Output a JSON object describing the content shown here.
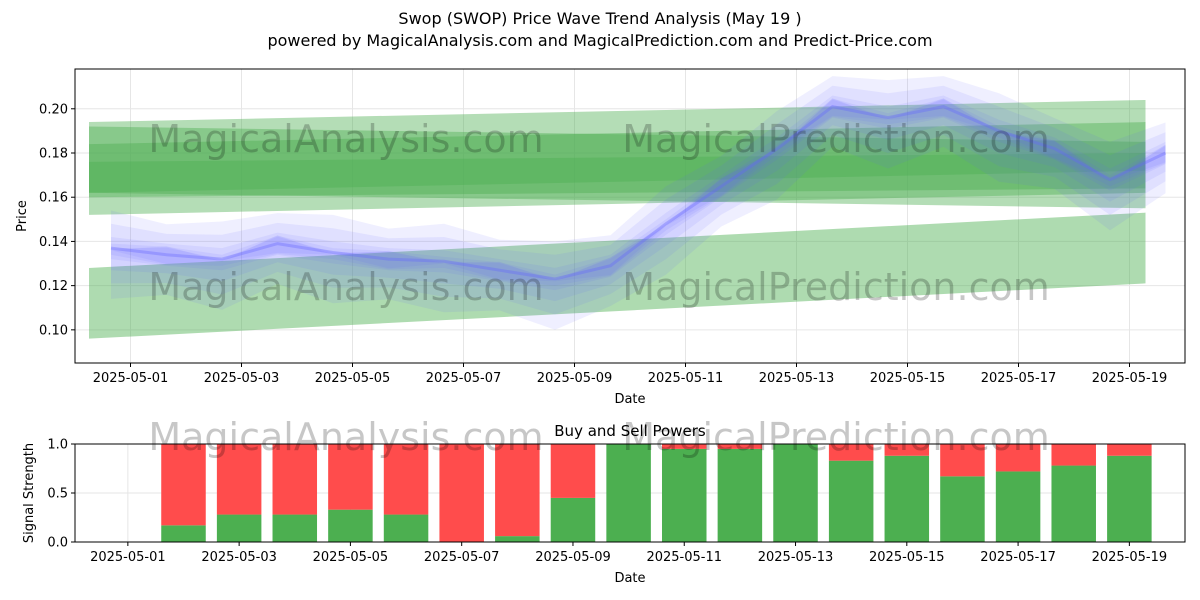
{
  "header": {
    "title": "Swop (SWOP) Price Wave Trend Analysis (May 19 )",
    "subtitle": "powered by MagicalAnalysis.com and MagicalPrediction.com and Predict-Price.com"
  },
  "watermarks": [
    "MagicalAnalysis.com",
    "MagicalPrediction.com"
  ],
  "colors": {
    "price_band": "#6464ff",
    "trend_band": "#4caf50",
    "buy": "#4caf50",
    "sell": "#ff4c4c",
    "grid": "#e6e6e6"
  },
  "chart_data": [
    {
      "type": "area",
      "title": "",
      "xlabel": "Date",
      "ylabel": "Price",
      "xlim": [
        "2025-04-30",
        "2025-05-20"
      ],
      "ylim": [
        0.085,
        0.218
      ],
      "grid": true,
      "x_ticks": [
        "2025-05-01",
        "2025-05-03",
        "2025-05-05",
        "2025-05-07",
        "2025-05-09",
        "2025-05-11",
        "2025-05-13",
        "2025-05-15",
        "2025-05-17",
        "2025-05-19"
      ],
      "y_ticks": [
        0.1,
        0.12,
        0.14,
        0.16,
        0.18,
        0.2
      ],
      "price_x": [
        "2025-04-30",
        "2025-05-01",
        "2025-05-02",
        "2025-05-03",
        "2025-05-04",
        "2025-05-05",
        "2025-05-06",
        "2025-05-07",
        "2025-05-08",
        "2025-05-09",
        "2025-05-10",
        "2025-05-11",
        "2025-05-12",
        "2025-05-13",
        "2025-05-14",
        "2025-05-15",
        "2025-05-16",
        "2025-05-17",
        "2025-05-18",
        "2025-05-19"
      ],
      "price_center": [
        0.137,
        0.134,
        0.132,
        0.139,
        0.135,
        0.132,
        0.131,
        0.127,
        0.123,
        0.129,
        0.148,
        0.165,
        0.182,
        0.201,
        0.196,
        0.201,
        0.19,
        0.182,
        0.168,
        0.18
      ],
      "trend_bands": [
        {
          "x0": "2025-04-30",
          "x1": "2025-05-19",
          "y0": 0.168,
          "y1": 0.178,
          "half_width": 0.016
        },
        {
          "x0": "2025-04-30",
          "x1": "2025-05-19",
          "y0": 0.177,
          "y1": 0.17,
          "half_width": 0.015
        },
        {
          "x0": "2025-04-30",
          "x1": "2025-05-19",
          "y0": 0.178,
          "y1": 0.188,
          "half_width": 0.016
        },
        {
          "x0": "2025-04-30",
          "x1": "2025-05-19",
          "y0": 0.168,
          "y1": 0.172,
          "half_width": 0.008
        },
        {
          "x0": "2025-04-30",
          "x1": "2025-05-19",
          "y0": 0.112,
          "y1": 0.137,
          "half_width": 0.016
        }
      ]
    },
    {
      "type": "bar",
      "title": "Buy and Sell Powers",
      "xlabel": "Date",
      "ylabel": "Signal Strength",
      "xlim": [
        "2025-04-30",
        "2025-05-20"
      ],
      "ylim": [
        0,
        1.0
      ],
      "grid": true,
      "x_ticks": [
        "2025-05-01",
        "2025-05-03",
        "2025-05-05",
        "2025-05-07",
        "2025-05-09",
        "2025-05-11",
        "2025-05-13",
        "2025-05-15",
        "2025-05-17",
        "2025-05-19"
      ],
      "y_ticks": [
        "0.0",
        "0.5",
        "1.0"
      ],
      "categories": [
        "2025-05-02",
        "2025-05-03",
        "2025-05-04",
        "2025-05-05",
        "2025-05-06",
        "2025-05-07",
        "2025-05-08",
        "2025-05-09",
        "2025-05-10",
        "2025-05-11",
        "2025-05-12",
        "2025-05-13",
        "2025-05-14",
        "2025-05-15",
        "2025-05-16",
        "2025-05-17",
        "2025-05-18",
        "2025-05-19"
      ],
      "series": [
        {
          "name": "Buy",
          "values": [
            0.17,
            0.28,
            0.28,
            0.33,
            0.28,
            0.0,
            0.06,
            0.45,
            1.0,
            0.95,
            0.95,
            1.0,
            0.83,
            0.88,
            0.67,
            0.72,
            0.78,
            0.88
          ]
        },
        {
          "name": "Sell",
          "values": [
            0.83,
            0.72,
            0.72,
            0.67,
            0.72,
            1.0,
            0.94,
            0.55,
            0.0,
            0.05,
            0.05,
            0.0,
            0.17,
            0.12,
            0.33,
            0.28,
            0.22,
            0.12
          ]
        }
      ]
    }
  ]
}
